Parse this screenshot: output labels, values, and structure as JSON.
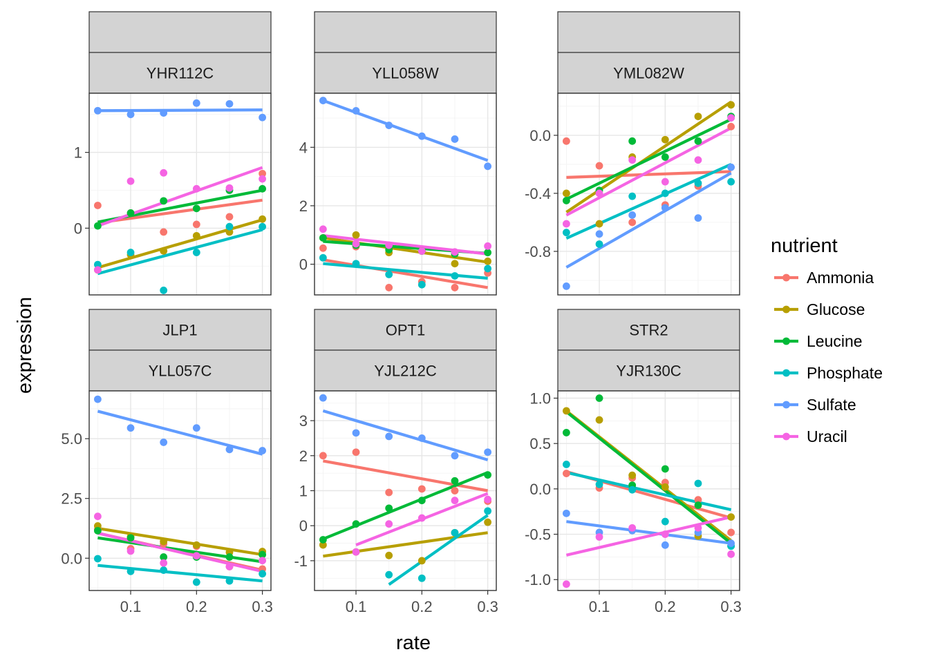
{
  "chart_data": {
    "type": "scatter",
    "xlabel": "rate",
    "ylabel": "expression",
    "legend": {
      "title": "nutrient",
      "placement": "right",
      "entries": [
        {
          "name": "Ammonia",
          "color": "#F8766D"
        },
        {
          "name": "Glucose",
          "color": "#B79F00"
        },
        {
          "name": "Leucine",
          "color": "#00BA38"
        },
        {
          "name": "Phosphate",
          "color": "#00BFC4"
        },
        {
          "name": "Sulfate",
          "color": "#619CFF"
        },
        {
          "name": "Uracil",
          "color": "#F564E3"
        }
      ]
    },
    "x_ticks": [
      0.1,
      0.2,
      0.3
    ],
    "xlim": [
      0.037,
      0.313
    ],
    "grid": true,
    "panels": [
      {
        "gene": "",
        "systematic": "YHR112C",
        "ylim": [
          -0.88,
          1.78
        ],
        "y_ticks": [
          0,
          1
        ],
        "y_tick_labels": [
          "0",
          "1"
        ],
        "series": [
          {
            "name": "Ammonia",
            "x": [
              0.05,
              0.1,
              0.15,
              0.2,
              0.25,
              0.3
            ],
            "y": [
              0.3,
              0.2,
              -0.05,
              0.05,
              0.15,
              0.72
            ],
            "fit": [
              0.07,
              0.37
            ]
          },
          {
            "name": "Glucose",
            "x": [
              0.05,
              0.1,
              0.15,
              0.2,
              0.25,
              0.3
            ],
            "y": [
              -0.55,
              -0.35,
              -0.3,
              -0.1,
              -0.05,
              0.12
            ],
            "fit": [
              -0.52,
              0.11
            ]
          },
          {
            "name": "Leucine",
            "x": [
              0.05,
              0.1,
              0.15,
              0.2,
              0.25,
              0.3
            ],
            "y": [
              0.03,
              0.2,
              0.36,
              0.26,
              0.5,
              0.52
            ],
            "fit": [
              0.08,
              0.5
            ]
          },
          {
            "name": "Phosphate",
            "x": [
              0.05,
              0.1,
              0.15,
              0.2,
              0.25,
              0.3
            ],
            "y": [
              -0.48,
              -0.32,
              -0.82,
              -0.32,
              0.02,
              0.02
            ],
            "fit": [
              -0.6,
              -0.02
            ]
          },
          {
            "name": "Sulfate",
            "x": [
              0.05,
              0.1,
              0.15,
              0.2,
              0.25,
              0.3
            ],
            "y": [
              1.55,
              1.5,
              1.52,
              1.65,
              1.64,
              1.46
            ],
            "fit": [
              1.55,
              1.56
            ]
          },
          {
            "name": "Uracil",
            "x": [
              0.05,
              0.1,
              0.15,
              0.2,
              0.25,
              0.3
            ],
            "y": [
              -0.55,
              0.62,
              0.73,
              0.52,
              0.53,
              0.65
            ],
            "fit": [
              0.03,
              0.8
            ]
          }
        ]
      },
      {
        "gene": "",
        "systematic": "YLL058W",
        "ylim": [
          -1.05,
          5.85
        ],
        "y_ticks": [
          0,
          2,
          4
        ],
        "y_tick_labels": [
          "0",
          "2",
          "4"
        ],
        "series": [
          {
            "name": "Ammonia",
            "x": [
              0.05,
              0.1,
              0.15,
              0.2,
              0.25,
              0.3
            ],
            "y": [
              0.55,
              0.6,
              -0.8,
              -0.6,
              -0.8,
              -0.3
            ],
            "fit": [
              0.15,
              -0.8
            ]
          },
          {
            "name": "Glucose",
            "x": [
              0.05,
              0.1,
              0.15,
              0.2,
              0.25,
              0.3
            ],
            "y": [
              0.9,
              1.0,
              0.4,
              0.45,
              0.02,
              0.1
            ],
            "fit": [
              0.9,
              0.07
            ]
          },
          {
            "name": "Leucine",
            "x": [
              0.05,
              0.1,
              0.15,
              0.2,
              0.25,
              0.3
            ],
            "y": [
              0.9,
              0.65,
              0.5,
              0.45,
              0.35,
              0.4
            ],
            "fit": [
              0.78,
              0.37
            ]
          },
          {
            "name": "Phosphate",
            "x": [
              0.05,
              0.1,
              0.15,
              0.2,
              0.25,
              0.3
            ],
            "y": [
              0.22,
              0.02,
              -0.35,
              -0.7,
              -0.4,
              -0.15
            ],
            "fit": [
              0.02,
              -0.48
            ]
          },
          {
            "name": "Sulfate",
            "x": [
              0.05,
              0.1,
              0.15,
              0.2,
              0.25,
              0.3
            ],
            "y": [
              5.6,
              5.25,
              4.75,
              4.38,
              4.28,
              3.35
            ],
            "fit": [
              5.6,
              3.55
            ]
          },
          {
            "name": "Uracil",
            "x": [
              0.05,
              0.1,
              0.15,
              0.2,
              0.25,
              0.3
            ],
            "y": [
              1.2,
              0.7,
              0.65,
              0.45,
              0.42,
              0.62
            ],
            "fit": [
              0.98,
              0.35
            ]
          }
        ]
      },
      {
        "gene": "",
        "systematic": "YML082W",
        "ylim": [
          -1.1,
          0.29
        ],
        "y_ticks": [
          -0.8,
          -0.4,
          0.0
        ],
        "y_tick_labels": [
          "-0.8",
          "-0.4",
          "0.0"
        ],
        "series": [
          {
            "name": "Ammonia",
            "x": [
              0.05,
              0.1,
              0.15,
              0.2,
              0.25,
              0.3
            ],
            "y": [
              -0.04,
              -0.21,
              -0.6,
              -0.48,
              -0.35,
              0.06
            ],
            "fit": [
              -0.29,
              -0.25
            ]
          },
          {
            "name": "Glucose",
            "x": [
              0.05,
              0.1,
              0.15,
              0.2,
              0.25,
              0.3
            ],
            "y": [
              -0.4,
              -0.61,
              -0.15,
              -0.03,
              0.13,
              0.21
            ],
            "fit": [
              -0.53,
              0.23
            ]
          },
          {
            "name": "Leucine",
            "x": [
              0.05,
              0.1,
              0.15,
              0.2,
              0.25,
              0.3
            ],
            "y": [
              -0.45,
              -0.38,
              -0.04,
              -0.15,
              -0.04,
              0.13
            ],
            "fit": [
              -0.44,
              0.11
            ]
          },
          {
            "name": "Phosphate",
            "x": [
              0.05,
              0.1,
              0.15,
              0.2,
              0.25,
              0.3
            ],
            "y": [
              -0.67,
              -0.75,
              -0.42,
              -0.4,
              -0.33,
              -0.32
            ],
            "fit": [
              -0.71,
              -0.2
            ]
          },
          {
            "name": "Sulfate",
            "x": [
              0.05,
              0.1,
              0.15,
              0.2,
              0.25,
              0.3
            ],
            "y": [
              -1.04,
              -0.68,
              -0.55,
              -0.5,
              -0.57,
              -0.22
            ],
            "fit": [
              -0.91,
              -0.26
            ]
          },
          {
            "name": "Uracil",
            "x": [
              0.05,
              0.1,
              0.15,
              0.2,
              0.25,
              0.3
            ],
            "y": [
              -0.61,
              -0.4,
              -0.17,
              -0.32,
              -0.17,
              0.12
            ],
            "fit": [
              -0.55,
              0.05
            ]
          }
        ]
      },
      {
        "gene": "JLP1",
        "systematic": "YLL057C",
        "ylim": [
          -1.35,
          7.0
        ],
        "y_ticks": [
          0,
          2.5,
          5
        ],
        "y_tick_labels": [
          "0.0",
          "2.5",
          "5.0"
        ],
        "series": [
          {
            "name": "Ammonia",
            "x": [
              0.05,
              0.1,
              0.15,
              0.2,
              0.25,
              0.3
            ],
            "y": [
              1.2,
              0.4,
              0.6,
              0.5,
              -0.35,
              -0.45
            ],
            "fit": [
              1.05,
              -0.5
            ]
          },
          {
            "name": "Glucose",
            "x": [
              0.05,
              0.1,
              0.15,
              0.2,
              0.25,
              0.3
            ],
            "y": [
              1.35,
              0.9,
              0.7,
              0.55,
              0.25,
              0.28
            ],
            "fit": [
              1.25,
              0.15
            ]
          },
          {
            "name": "Leucine",
            "x": [
              0.05,
              0.1,
              0.15,
              0.2,
              0.25,
              0.3
            ],
            "y": [
              1.15,
              0.85,
              0.05,
              0.05,
              0.05,
              0.15
            ],
            "fit": [
              0.85,
              -0.15
            ]
          },
          {
            "name": "Phosphate",
            "x": [
              0.05,
              0.1,
              0.15,
              0.2,
              0.25,
              0.3
            ],
            "y": [
              -0.02,
              -0.55,
              -0.5,
              -1.0,
              -0.95,
              -0.65
            ],
            "fit": [
              -0.3,
              -0.95
            ]
          },
          {
            "name": "Sulfate",
            "x": [
              0.05,
              0.1,
              0.15,
              0.2,
              0.25,
              0.3
            ],
            "y": [
              6.65,
              5.45,
              4.85,
              5.45,
              4.55,
              4.5
            ],
            "fit": [
              6.15,
              4.35
            ]
          },
          {
            "name": "Uracil",
            "x": [
              0.05,
              0.1,
              0.15,
              0.2,
              0.25,
              0.3
            ],
            "y": [
              1.75,
              0.3,
              -0.2,
              0.1,
              -0.35,
              -0.1
            ],
            "fit": [
              1.05,
              -0.55
            ]
          }
        ]
      },
      {
        "gene": "OPT1",
        "systematic": "YJL212C",
        "ylim": [
          -1.85,
          3.85
        ],
        "y_ticks": [
          -1,
          0,
          1,
          2,
          3
        ],
        "y_tick_labels": [
          "-1",
          "0",
          "1",
          "2",
          "3"
        ],
        "series": [
          {
            "name": "Ammonia",
            "x": [
              0.05,
              0.1,
              0.15,
              0.2,
              0.25,
              0.3
            ],
            "y": [
              2.0,
              2.1,
              0.95,
              1.05,
              1.0,
              0.7
            ],
            "fit": [
              1.85,
              1.0
            ]
          },
          {
            "name": "Glucose",
            "x": [
              0.05,
              0.1,
              0.15,
              0.2,
              0.25,
              0.3
            ],
            "y": [
              -0.55,
              -0.75,
              -0.85,
              -1.0,
              -0.2,
              0.1
            ],
            "fit": [
              -0.87,
              -0.2
            ]
          },
          {
            "name": "Leucine",
            "x": [
              0.05,
              0.1,
              0.15,
              0.2,
              0.25,
              0.3
            ],
            "y": [
              -0.4,
              0.05,
              0.5,
              0.72,
              1.28,
              1.45
            ],
            "fit": [
              -0.38,
              1.52
            ]
          },
          {
            "name": "Phosphate",
            "x": [
              0.15,
              0.2,
              0.25,
              0.3
            ],
            "y": [
              -1.4,
              -1.5,
              -0.2,
              0.42
            ],
            "fit": [
              -1.68,
              0.3
            ],
            "fit_x": [
              0.15,
              0.3
            ]
          },
          {
            "name": "Sulfate",
            "x": [
              0.05,
              0.1,
              0.15,
              0.2,
              0.25,
              0.3
            ],
            "y": [
              3.65,
              2.65,
              2.55,
              2.5,
              2.0,
              2.1
            ],
            "fit": [
              3.28,
              1.88
            ]
          },
          {
            "name": "Uracil",
            "x": [
              0.1,
              0.15,
              0.2,
              0.25,
              0.3
            ],
            "y": [
              -0.75,
              0.05,
              0.22,
              0.72,
              0.75
            ],
            "fit": [
              -0.55,
              0.92
            ],
            "fit_x": [
              0.1,
              0.3
            ]
          }
        ]
      },
      {
        "gene": "STR2",
        "systematic": "YJR130C",
        "ylim": [
          -1.12,
          1.08
        ],
        "y_ticks": [
          -1,
          -0.5,
          0,
          0.5,
          1
        ],
        "y_tick_labels": [
          "-1.0",
          "-0.5",
          "0.0",
          "0.5",
          "1.0"
        ],
        "series": [
          {
            "name": "Ammonia",
            "x": [
              0.05,
              0.1,
              0.15,
              0.2,
              0.25,
              0.3
            ],
            "y": [
              0.17,
              0.01,
              0.12,
              0.07,
              -0.12,
              -0.48
            ],
            "fit": [
              0.19,
              -0.32
            ]
          },
          {
            "name": "Glucose",
            "x": [
              0.05,
              0.1,
              0.15,
              0.2,
              0.25,
              0.3
            ],
            "y": [
              0.86,
              0.76,
              0.15,
              0.02,
              -0.52,
              -0.31
            ],
            "fit": [
              0.86,
              -0.57
            ]
          },
          {
            "name": "Leucine",
            "x": [
              0.05,
              0.1,
              0.15,
              0.2,
              0.25,
              0.3
            ],
            "y": [
              0.62,
              1.0,
              0.04,
              0.22,
              -0.18,
              -0.63
            ],
            "fit": [
              0.85,
              -0.6
            ]
          },
          {
            "name": "Phosphate",
            "x": [
              0.05,
              0.1,
              0.15,
              0.2,
              0.25,
              0.3
            ],
            "y": [
              0.27,
              0.05,
              -0.01,
              -0.36,
              0.06,
              -0.63
            ],
            "fit": [
              0.18,
              -0.23
            ]
          },
          {
            "name": "Sulfate",
            "x": [
              0.05,
              0.1,
              0.15,
              0.2,
              0.25,
              0.3
            ],
            "y": [
              -0.27,
              -0.48,
              -0.46,
              -0.62,
              -0.48,
              -0.6
            ],
            "fit": [
              -0.36,
              -0.6
            ]
          },
          {
            "name": "Uracil",
            "x": [
              0.05,
              0.1,
              0.15,
              0.2,
              0.25,
              0.3
            ],
            "y": [
              -1.05,
              -0.53,
              -0.43,
              -0.5,
              -0.43,
              -0.72
            ],
            "fit": [
              -0.73,
              -0.31
            ]
          }
        ]
      }
    ]
  }
}
